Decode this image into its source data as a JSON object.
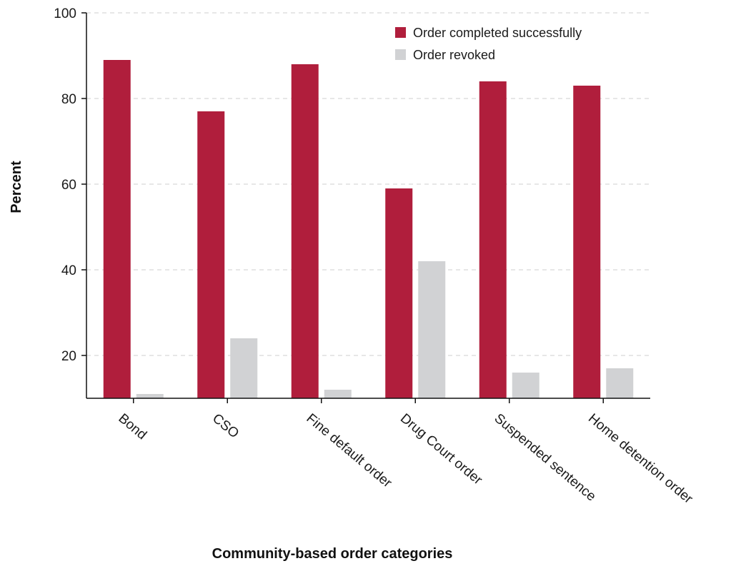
{
  "chart_data": {
    "type": "bar",
    "categories": [
      "Bond",
      "CSO",
      "Fine default order",
      "Drug Court order",
      "Suspended sentence",
      "Home detention order"
    ],
    "series": [
      {
        "name": "Order completed successfully",
        "color": "#b01e3c",
        "values": [
          89,
          77,
          88,
          59,
          84,
          83
        ]
      },
      {
        "name": "Order revoked",
        "color": "#d1d2d4",
        "values": [
          11,
          24,
          12,
          42,
          16,
          17
        ]
      }
    ],
    "title": "",
    "xlabel": "Community-based order categories",
    "ylabel": "Percent",
    "ylim": [
      10,
      100
    ],
    "yticks": [
      20,
      40,
      60,
      80,
      100
    ],
    "grid": "horizontal dashed",
    "legend_position": "top-right"
  }
}
